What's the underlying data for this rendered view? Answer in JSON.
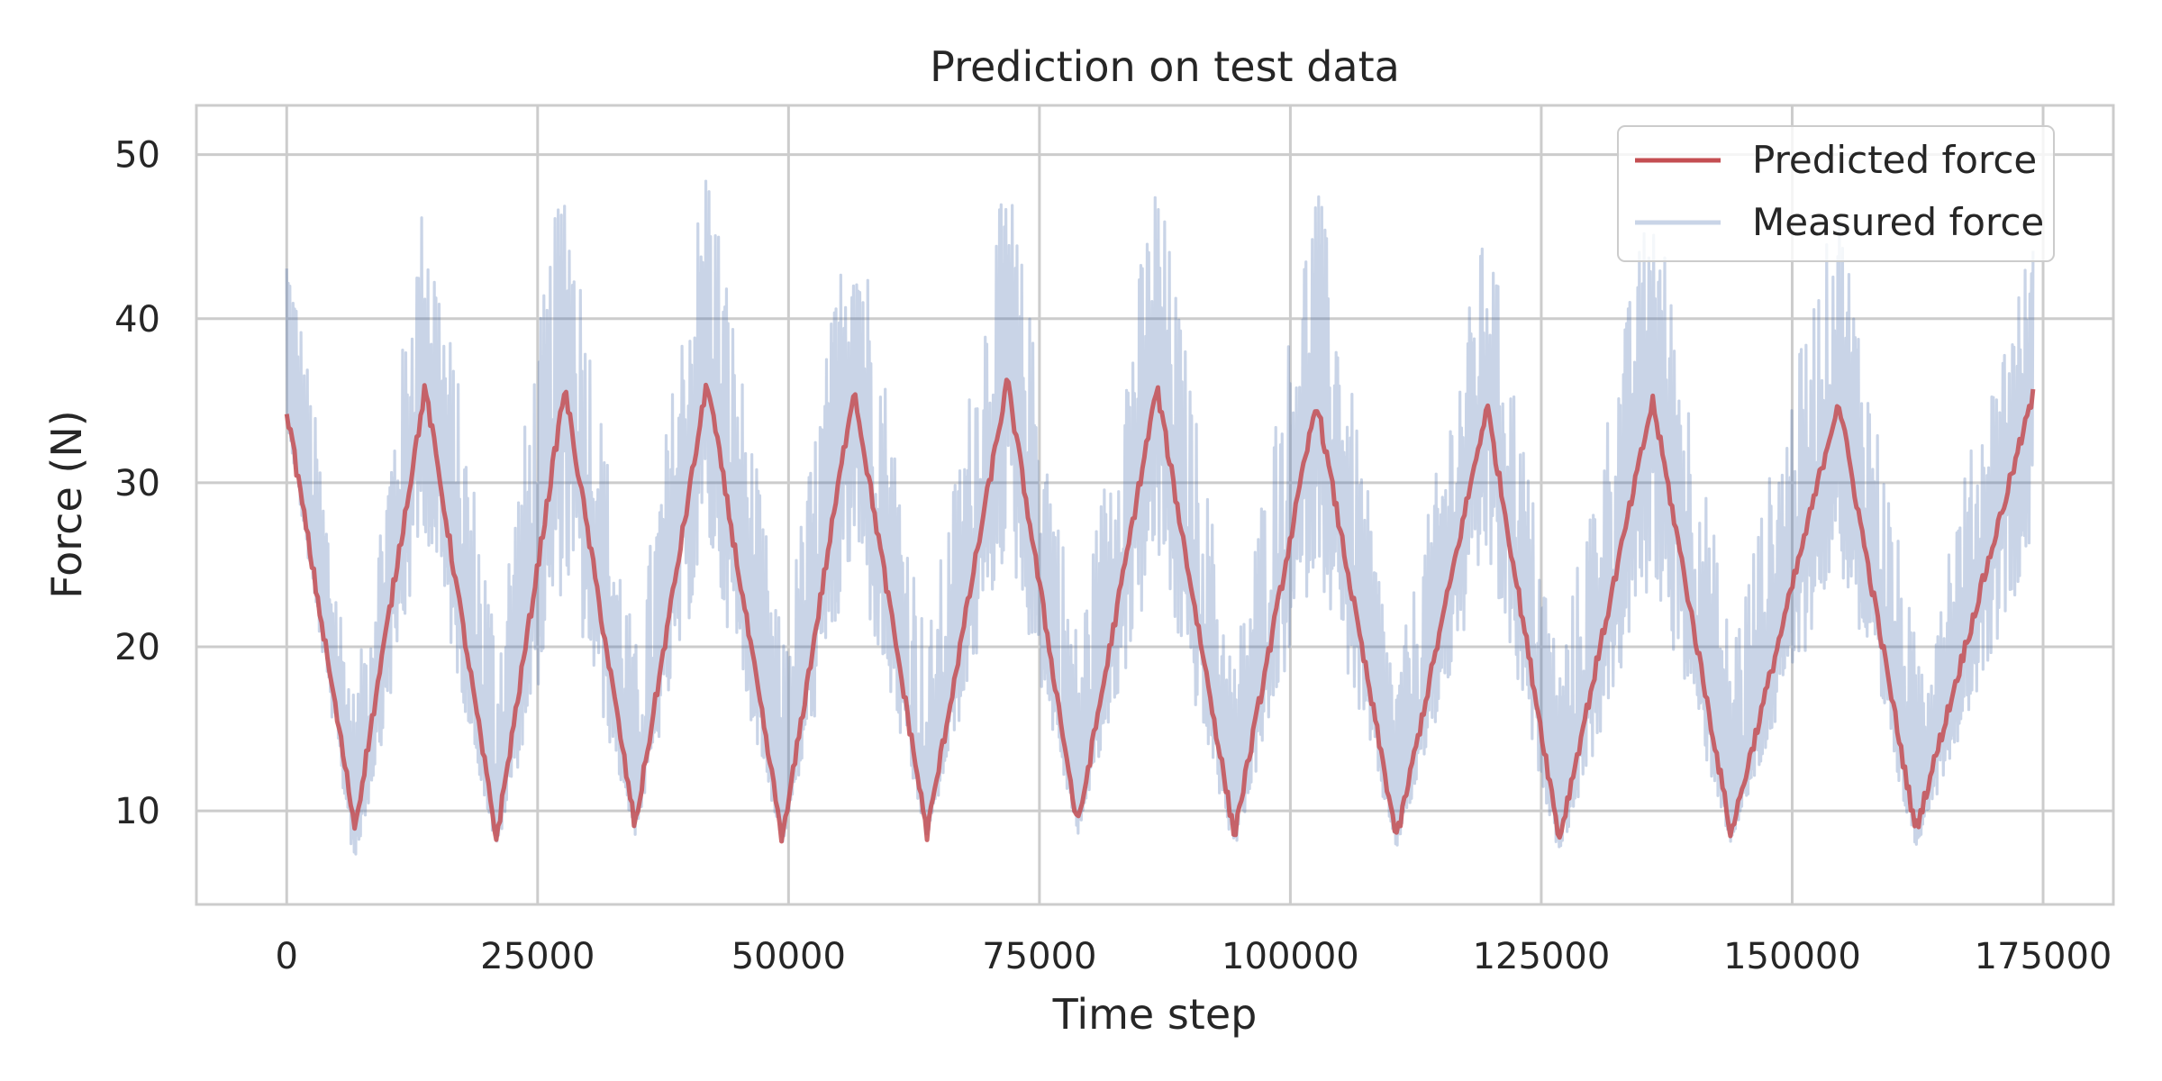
{
  "chart_data": {
    "type": "line",
    "title": "Prediction on test data",
    "xlabel": "Time step",
    "ylabel": "Force (N)",
    "xlim": [
      -9000,
      182000
    ],
    "ylim": [
      4.3,
      53
    ],
    "xticks": [
      0,
      25000,
      50000,
      75000,
      100000,
      125000,
      150000,
      175000
    ],
    "xtick_labels": [
      "0",
      "25000",
      "50000",
      "75000",
      "100000",
      "125000",
      "150000",
      "175000"
    ],
    "yticks": [
      10,
      20,
      30,
      40,
      50
    ],
    "ytick_labels": [
      "10",
      "20",
      "30",
      "40",
      "50"
    ],
    "grid": true,
    "legend_position": "upper right",
    "series": [
      {
        "name": "Predicted force",
        "color": "#c44e52",
        "x": [
          0,
          6800,
          13800,
          20900,
          27700,
          34700,
          41900,
          49400,
          56500,
          63800,
          71800,
          78800,
          86700,
          94400,
          102600,
          110600,
          119600,
          126800,
          136100,
          143900,
          154600,
          162300,
          174000
        ],
        "values": [
          34.5,
          9,
          35.8,
          8.3,
          35.8,
          9,
          36.2,
          8.2,
          35.8,
          8.6,
          36.2,
          9,
          35.8,
          8.5,
          35,
          8.3,
          34.7,
          8.3,
          35,
          8.6,
          35,
          8.8,
          35.3
        ]
      },
      {
        "name": "Measured force",
        "color": "#4c72b0",
        "x": [
          0,
          6800,
          13800,
          20900,
          27700,
          34700,
          41900,
          49400,
          56500,
          63800,
          71800,
          78800,
          86700,
          94400,
          102600,
          110600,
          119600,
          126800,
          136100,
          143900,
          154600,
          162300,
          174000
        ],
        "values": [
          34.5,
          9,
          35.8,
          8.3,
          35.8,
          9,
          36.2,
          8.2,
          35.8,
          8.6,
          36.2,
          9,
          35.8,
          8.5,
          35,
          8.3,
          34.7,
          8.3,
          35,
          8.6,
          35,
          8.8,
          35.3
        ],
        "upper_envelope": [
          46.5,
          17,
          48.5,
          22,
          50.2,
          20,
          50.8,
          20.5,
          49,
          20.5,
          49.5,
          21,
          49.3,
          19.5,
          49,
          18.5,
          46.2,
          19.5,
          48.5,
          21,
          47.5,
          20.5,
          45
        ],
        "lower_envelope": [
          34,
          6.3,
          27,
          7.5,
          24,
          8.5,
          26,
          8,
          25,
          8.3,
          26,
          8.5,
          25,
          7.6,
          25,
          7.7,
          25,
          7.3,
          24,
          8,
          25,
          7.7,
          26
        ]
      }
    ]
  }
}
